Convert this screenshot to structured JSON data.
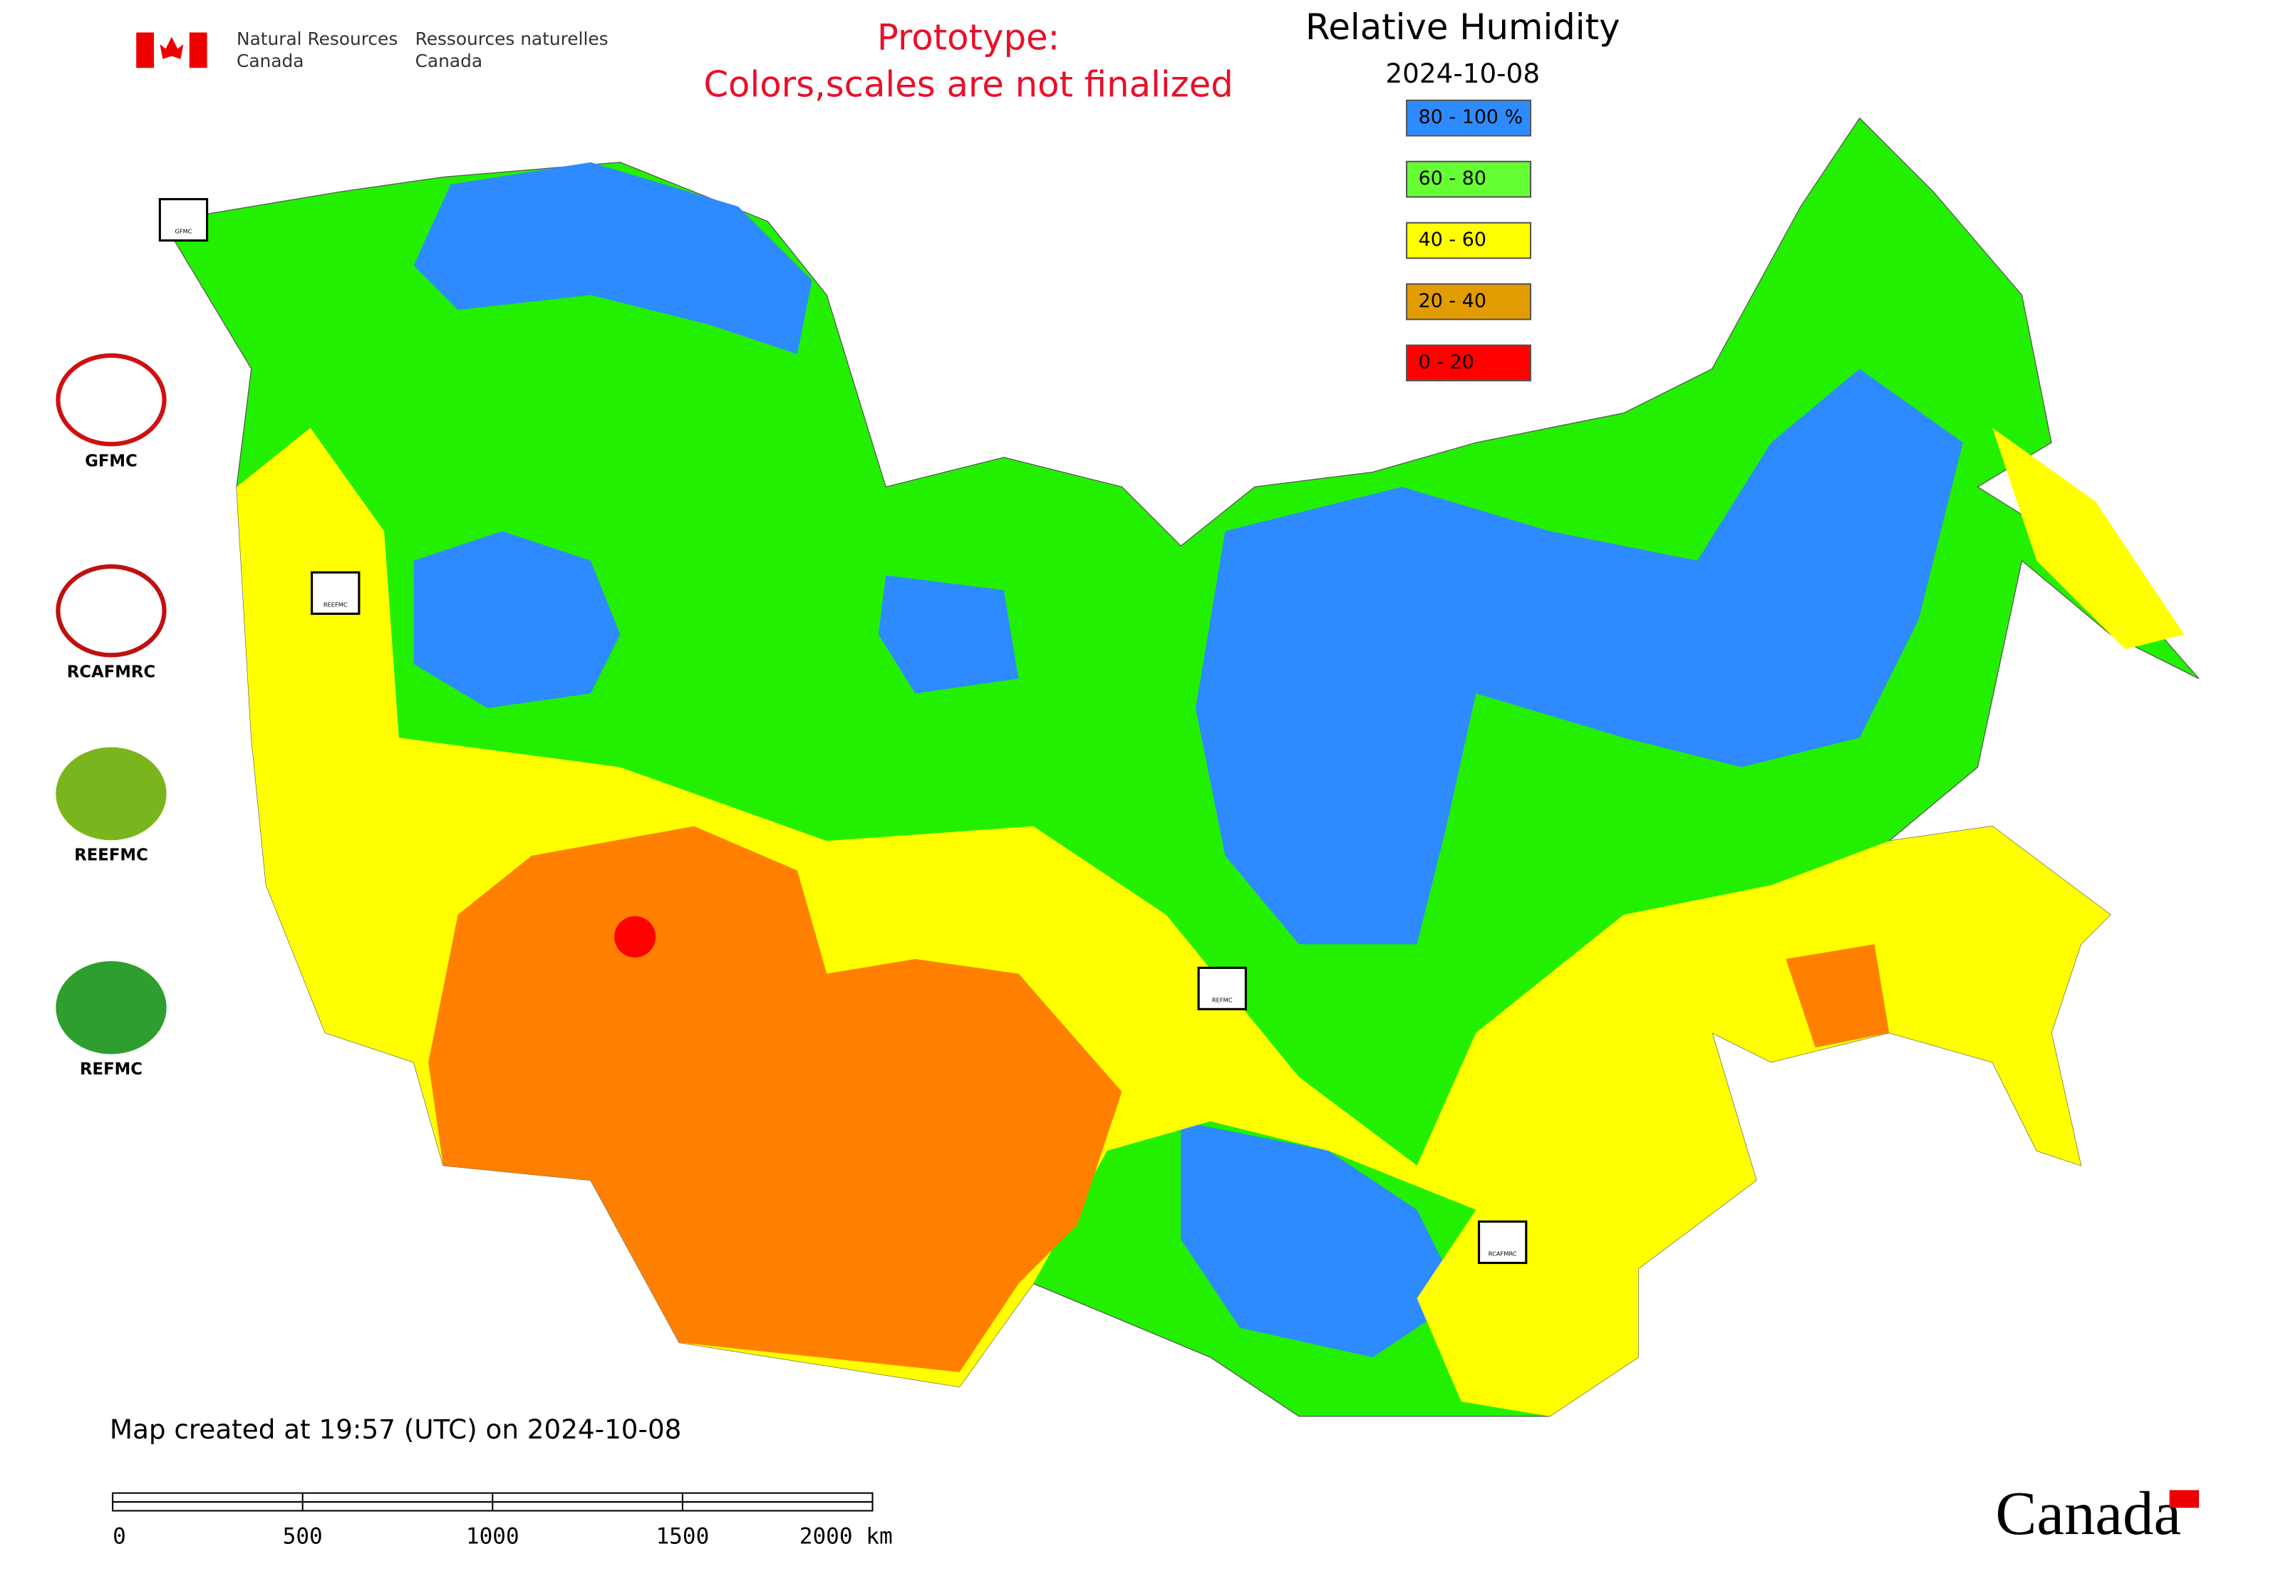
{
  "header": {
    "dept_en": [
      "Natural Resources",
      "Canada"
    ],
    "dept_fr": [
      "Ressources naturelles",
      "Canada"
    ]
  },
  "notice": [
    "Prototype:",
    "Colors,scales are not finalized"
  ],
  "title": "Relative Humidity",
  "date": "2024-10-08",
  "legend": [
    {
      "label": "80 - 100 %",
      "color": "#2e8bff"
    },
    {
      "label": "60 - 80",
      "color": "#66ff33"
    },
    {
      "label": "40 - 60",
      "color": "#ffff00"
    },
    {
      "label": "20 - 40",
      "color": "#e39c00"
    },
    {
      "label": "0 - 20",
      "color": "#ff0000"
    }
  ],
  "logos": [
    "GFMC",
    "RCAFMRC",
    "REEFMC",
    "REFMC"
  ],
  "map_stamps": [
    "GFMC",
    "REEFMC",
    "REFMC",
    "RCAFMRC"
  ],
  "footnote": "Map created at 19:57 (UTC) on 2024-10-08",
  "scale_bar": [
    "0",
    "500",
    "1000",
    "1500",
    "2000 km"
  ],
  "wordmark": "Canada"
}
